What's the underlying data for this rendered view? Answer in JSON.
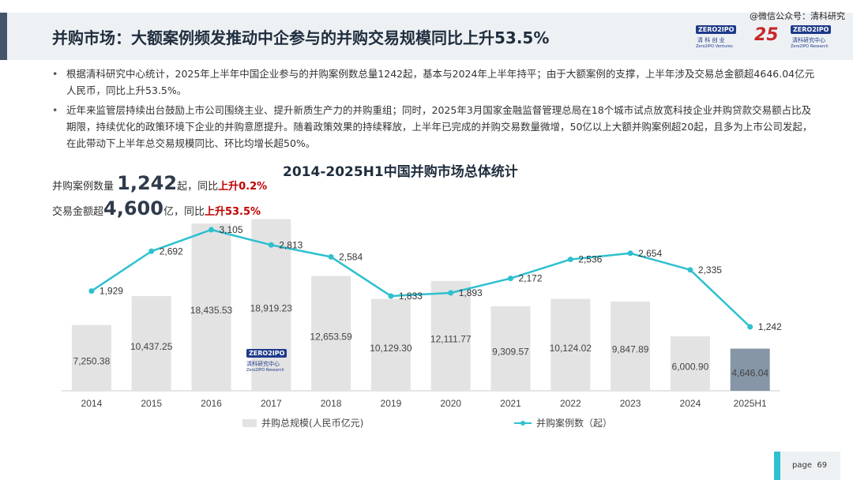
{
  "watermark": "@微信公众号：清科研究",
  "header": {
    "title": "并购市场：大额案例频发推动中企参与的并购交易规模同比上升53.5%",
    "logo1_text": "ZERO2IPO",
    "logo1_cn": "清 科 创 业",
    "logo1_en": "Zero2IPO Ventures",
    "logo_25": "25",
    "logo2_text": "ZERO2IPO",
    "logo2_cn": "清科研究中心",
    "logo2_en": "Zero2IPO Research"
  },
  "bullets": [
    "根据清科研究中心统计，2025年上半年中国企业参与的并购案例数总量1242起，基本与2024年上半年持平；由于大额案例的支撑，上半年涉及交易总金额超4646.04亿元人民币，同比上升53.5%。",
    "近年来监管层持续出台鼓励上市公司围绕主业、提升新质生产力的并购重组；同时，2025年3月国家金融监督管理总局在18个城市试点放宽科技企业并购贷款交易额占比及期限，持续优化的政策环境下企业的并购意愿提升。随着政策效果的持续释放，上半年已完成的并购交易数量微增，50亿以上大额并购案例超20起，且多为上市公司发起，在此带动下上半年总交易规模同比、环比均增长超50%。"
  ],
  "kpi1": {
    "label": "并购案例数量",
    "value": "1,242",
    "unit_text": "起，同比",
    "change": "上升0.2%"
  },
  "kpi2": {
    "label": "交易金额超",
    "value": "4,600",
    "unit_text": "亿，同比",
    "change": "上升53.5%"
  },
  "chart_data": {
    "type": "bar",
    "title": "2014-2025H1中国并购市场总体统计",
    "categories": [
      "2014",
      "2015",
      "2016",
      "2017",
      "2018",
      "2019",
      "2020",
      "2021",
      "2022",
      "2023",
      "2024",
      "2025H1"
    ],
    "series": [
      {
        "name": "并购总规模(人民币亿元)",
        "type": "bar",
        "values": [
          7250.38,
          10437.25,
          18435.53,
          18919.23,
          12653.59,
          10129.3,
          12111.77,
          9309.57,
          10124.02,
          9847.89,
          6000.9,
          4646.04
        ],
        "labels": [
          "7,250.38",
          "10,437.25",
          "18,435.53",
          "18,919.23",
          "12,653.59",
          "10,129.30",
          "12,111.77",
          "9,309.57",
          "10,124.02",
          "9,847.89",
          "6,000.90",
          "4,646.04"
        ],
        "color": "#e3e3e3",
        "highlight_color": "#8696a7"
      },
      {
        "name": "并购案例数（起）",
        "type": "line",
        "values": [
          1929,
          2692,
          3105,
          2813,
          2584,
          1833,
          1893,
          2172,
          2536,
          2654,
          2335,
          1242
        ],
        "labels": [
          "1,929",
          "2,692",
          "3,105",
          "2,813",
          "2,584",
          "1,833",
          "1,893",
          "2,172",
          "2,536",
          "2,654",
          "2,335",
          "1,242"
        ],
        "color": "#2ec0cf"
      }
    ],
    "chart_logo_text": "ZERO2IPO",
    "chart_logo_cn": "清科研究中心",
    "chart_logo_en": "Zero2IPO Research"
  },
  "footer": {
    "page_label": "page",
    "page_number": "69"
  }
}
